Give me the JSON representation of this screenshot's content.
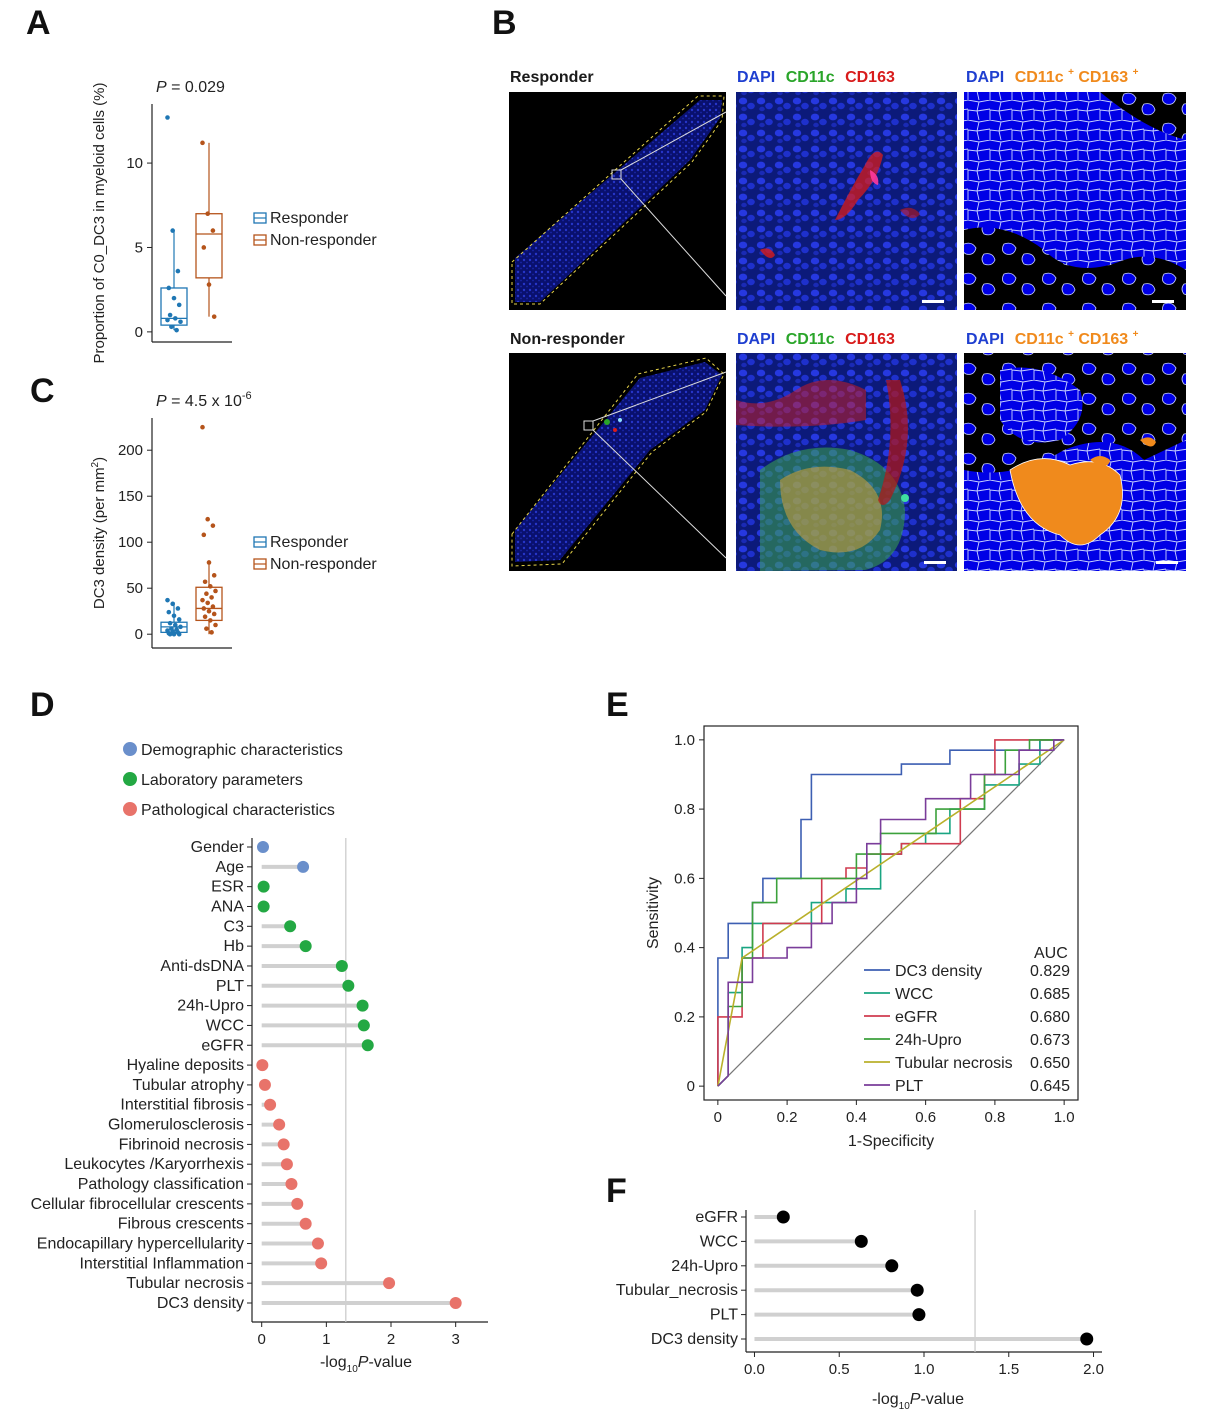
{
  "panels": {
    "A": "A",
    "B": "B",
    "C": "C",
    "D": "D",
    "E": "E",
    "F": "F"
  },
  "legend_groups": {
    "responder": "Responder",
    "non_responder": "Non-responder"
  },
  "colors": {
    "responder": "#1f77b4",
    "non_responder": "#b5541b",
    "demographic": "#6a8fcb",
    "laboratory": "#23a843",
    "pathological": "#e8736a",
    "lollipop_bar": "#d0d0d0",
    "threshold": "#c8c8c8",
    "dapi": "#1f3fd0",
    "cd11c": "#2aa52a",
    "cd163": "#d81b1b",
    "double_pos": "#f08a1c"
  },
  "chart_data": [
    {
      "panel": "A",
      "type": "box",
      "p_label": "P",
      "p_value": "= 0.029",
      "ylabel": "Proportion of C0_DC3 in myeloid cells (%)",
      "ylim": [
        -0.6,
        13.5
      ],
      "yticks": [
        "0",
        "5",
        "10"
      ],
      "ytick_values": [
        0,
        5,
        10
      ],
      "groups": [
        {
          "name": "Responder",
          "q1": 0.4,
          "median": 0.8,
          "q3": 2.6,
          "whisker_low": 0.1,
          "whisker_high": 6.0,
          "points": [
            12.7,
            6.0,
            3.6,
            2.6,
            2.0,
            1.6,
            1.0,
            0.8,
            0.6,
            0.3,
            0.1,
            0.7
          ]
        },
        {
          "name": "Non-responder",
          "q1": 3.2,
          "median": 5.8,
          "q3": 7.0,
          "whisker_low": 0.9,
          "whisker_high": 11.2,
          "points": [
            11.2,
            7.0,
            6.0,
            5.0,
            2.8,
            0.9
          ]
        }
      ]
    },
    {
      "panel": "C",
      "type": "box",
      "p_label": "P",
      "p_value": "= 4.5 x 10",
      "p_exp": "-6",
      "ylabel": "DC3 density (per mm",
      "ylabel_sup": "2",
      "ylabel_tail": ")",
      "ylim": [
        -15,
        235
      ],
      "yticks": [
        "0",
        "50",
        "100",
        "150",
        "200"
      ],
      "ytick_values": [
        0,
        50,
        100,
        150,
        200
      ],
      "groups": [
        {
          "name": "Responder",
          "q1": 2,
          "median": 8,
          "q3": 13,
          "whisker_low": 0,
          "whisker_high": 35,
          "points": [
            37,
            33,
            28,
            24,
            20,
            16,
            12,
            10,
            8,
            6,
            5,
            4,
            3,
            2,
            1,
            0,
            0,
            0
          ]
        },
        {
          "name": "Non-responder",
          "q1": 15,
          "median": 28,
          "q3": 51,
          "whisker_low": 0,
          "whisker_high": 78,
          "points": [
            225,
            125,
            118,
            108,
            78,
            64,
            57,
            52,
            47,
            44,
            40,
            37,
            34,
            30,
            28,
            25,
            22,
            19,
            15,
            10,
            6,
            2
          ]
        }
      ]
    },
    {
      "panel": "D",
      "type": "lollipop",
      "xlabel_pre": "-log",
      "xlabel_sub": "10",
      "xlabel_post": "P-value",
      "xlim": [
        -0.15,
        3.5
      ],
      "xticks": [
        "0",
        "1",
        "2",
        "3"
      ],
      "xtick_values": [
        0,
        1,
        2,
        3
      ],
      "threshold": 1.301,
      "legend": [
        {
          "label": "Demographic characteristics",
          "group": "demographic"
        },
        {
          "label": "Laboratory parameters",
          "group": "laboratory"
        },
        {
          "label": "Pathological characteristics",
          "group": "pathological"
        }
      ],
      "items": [
        {
          "label": "Gender",
          "value": 0.02,
          "group": "demographic"
        },
        {
          "label": "Age",
          "value": 0.64,
          "group": "demographic"
        },
        {
          "label": "ESR",
          "value": 0.03,
          "group": "laboratory"
        },
        {
          "label": "ANA",
          "value": 0.03,
          "group": "laboratory"
        },
        {
          "label": "C3",
          "value": 0.44,
          "group": "laboratory"
        },
        {
          "label": "Hb",
          "value": 0.68,
          "group": "laboratory"
        },
        {
          "label": "Anti-dsDNA",
          "value": 1.24,
          "group": "laboratory"
        },
        {
          "label": "PLT",
          "value": 1.34,
          "group": "laboratory"
        },
        {
          "label": "24h-Upro",
          "value": 1.56,
          "group": "laboratory"
        },
        {
          "label": "WCC",
          "value": 1.58,
          "group": "laboratory"
        },
        {
          "label": "eGFR",
          "value": 1.64,
          "group": "laboratory"
        },
        {
          "label": "Hyaline deposits",
          "value": 0.01,
          "group": "pathological"
        },
        {
          "label": "Tubular atrophy",
          "value": 0.05,
          "group": "pathological"
        },
        {
          "label": "Interstitial fibrosis",
          "value": 0.13,
          "group": "pathological"
        },
        {
          "label": "Glomerulosclerosis",
          "value": 0.27,
          "group": "pathological"
        },
        {
          "label": "Fibrinoid necrosis",
          "value": 0.34,
          "group": "pathological"
        },
        {
          "label": "Leukocytes /Karyorrhexis",
          "value": 0.39,
          "group": "pathological"
        },
        {
          "label": "Pathology classification",
          "value": 0.46,
          "group": "pathological"
        },
        {
          "label": "Cellular fibrocellular crescents",
          "value": 0.55,
          "group": "pathological"
        },
        {
          "label": "Fibrous crescents",
          "value": 0.68,
          "group": "pathological"
        },
        {
          "label": "Endocapillary hypercellularity",
          "value": 0.87,
          "group": "pathological"
        },
        {
          "label": "Interstitial Inflammation",
          "value": 0.92,
          "group": "pathological"
        },
        {
          "label": "Tubular necrosis",
          "value": 1.97,
          "group": "pathological"
        },
        {
          "label": "DC3 density",
          "value": 3.0,
          "group": "pathological"
        }
      ]
    },
    {
      "panel": "E",
      "type": "line",
      "xlabel": "1-Specificity",
      "ylabel": "Sensitivity",
      "xlim": [
        -0.04,
        1.04
      ],
      "ylim": [
        -0.04,
        1.04
      ],
      "xticks": [
        "0",
        "0.2",
        "0.4",
        "0.6",
        "0.8",
        "1.0"
      ],
      "yticks": [
        "0",
        "0.2",
        "0.4",
        "0.6",
        "0.8",
        "1.0"
      ],
      "tick_values": [
        0,
        0.2,
        0.4,
        0.6,
        0.8,
        1.0
      ],
      "auc_header": "AUC",
      "series": [
        {
          "name": "DC3 density",
          "auc": "0.829",
          "color": "#3d5fb2",
          "points": [
            [
              0,
              0
            ],
            [
              0,
              0.37
            ],
            [
              0.03,
              0.37
            ],
            [
              0.03,
              0.47
            ],
            [
              0.1,
              0.47
            ],
            [
              0.1,
              0.53
            ],
            [
              0.13,
              0.53
            ],
            [
              0.13,
              0.6
            ],
            [
              0.24,
              0.6
            ],
            [
              0.24,
              0.77
            ],
            [
              0.27,
              0.77
            ],
            [
              0.27,
              0.9
            ],
            [
              0.53,
              0.9
            ],
            [
              0.53,
              0.93
            ],
            [
              0.67,
              0.93
            ],
            [
              0.67,
              0.97
            ],
            [
              0.93,
              0.97
            ],
            [
              0.93,
              1.0
            ],
            [
              1.0,
              1.0
            ]
          ]
        },
        {
          "name": "WCC",
          "auc": "0.685",
          "color": "#1aa582",
          "points": [
            [
              0,
              0
            ],
            [
              0.03,
              0.03
            ],
            [
              0.03,
              0.27
            ],
            [
              0.07,
              0.27
            ],
            [
              0.07,
              0.4
            ],
            [
              0.1,
              0.4
            ],
            [
              0.1,
              0.47
            ],
            [
              0.27,
              0.47
            ],
            [
              0.27,
              0.53
            ],
            [
              0.37,
              0.53
            ],
            [
              0.37,
              0.57
            ],
            [
              0.47,
              0.57
            ],
            [
              0.47,
              0.67
            ],
            [
              0.53,
              0.67
            ],
            [
              0.53,
              0.7
            ],
            [
              0.6,
              0.7
            ],
            [
              0.6,
              0.73
            ],
            [
              0.67,
              0.73
            ],
            [
              0.67,
              0.8
            ],
            [
              0.77,
              0.8
            ],
            [
              0.77,
              0.87
            ],
            [
              0.87,
              0.87
            ],
            [
              0.87,
              0.93
            ],
            [
              0.93,
              0.93
            ],
            [
              0.93,
              1.0
            ],
            [
              1.0,
              1.0
            ]
          ]
        },
        {
          "name": "eGFR",
          "auc": "0.680",
          "color": "#d03b4f",
          "points": [
            [
              0,
              0
            ],
            [
              0,
              0.2
            ],
            [
              0.07,
              0.2
            ],
            [
              0.07,
              0.37
            ],
            [
              0.13,
              0.37
            ],
            [
              0.13,
              0.47
            ],
            [
              0.3,
              0.47
            ],
            [
              0.3,
              0.6
            ],
            [
              0.37,
              0.6
            ],
            [
              0.37,
              0.63
            ],
            [
              0.43,
              0.63
            ],
            [
              0.43,
              0.67
            ],
            [
              0.53,
              0.67
            ],
            [
              0.53,
              0.7
            ],
            [
              0.7,
              0.7
            ],
            [
              0.7,
              0.83
            ],
            [
              0.77,
              0.83
            ],
            [
              0.77,
              0.9
            ],
            [
              0.8,
              0.9
            ],
            [
              0.8,
              1.0
            ],
            [
              1.0,
              1.0
            ]
          ]
        },
        {
          "name": "24h-Upro",
          "auc": "0.673",
          "color": "#3ca13c",
          "points": [
            [
              0,
              0
            ],
            [
              0.03,
              0.03
            ],
            [
              0.03,
              0.23
            ],
            [
              0.07,
              0.23
            ],
            [
              0.07,
              0.37
            ],
            [
              0.1,
              0.37
            ],
            [
              0.1,
              0.53
            ],
            [
              0.17,
              0.53
            ],
            [
              0.17,
              0.6
            ],
            [
              0.4,
              0.6
            ],
            [
              0.4,
              0.67
            ],
            [
              0.47,
              0.67
            ],
            [
              0.47,
              0.73
            ],
            [
              0.63,
              0.73
            ],
            [
              0.63,
              0.8
            ],
            [
              0.77,
              0.8
            ],
            [
              0.77,
              0.9
            ],
            [
              0.83,
              0.9
            ],
            [
              0.83,
              0.97
            ],
            [
              0.9,
              0.97
            ],
            [
              0.9,
              1.0
            ],
            [
              1.0,
              1.0
            ]
          ]
        },
        {
          "name": "Tubular necrosis",
          "auc": "0.650",
          "color": "#b9b02b",
          "points": [
            [
              0,
              0
            ],
            [
              0.07,
              0.37
            ],
            [
              1.0,
              1.0
            ]
          ]
        },
        {
          "name": "PLT",
          "auc": "0.645",
          "color": "#7a3d9a",
          "points": [
            [
              0,
              0
            ],
            [
              0.03,
              0.03
            ],
            [
              0.03,
              0.3
            ],
            [
              0.1,
              0.3
            ],
            [
              0.1,
              0.37
            ],
            [
              0.2,
              0.37
            ],
            [
              0.2,
              0.4
            ],
            [
              0.27,
              0.4
            ],
            [
              0.27,
              0.47
            ],
            [
              0.33,
              0.47
            ],
            [
              0.33,
              0.53
            ],
            [
              0.4,
              0.53
            ],
            [
              0.4,
              0.6
            ],
            [
              0.43,
              0.6
            ],
            [
              0.43,
              0.7
            ],
            [
              0.47,
              0.7
            ],
            [
              0.47,
              0.77
            ],
            [
              0.6,
              0.77
            ],
            [
              0.6,
              0.83
            ],
            [
              0.73,
              0.83
            ],
            [
              0.73,
              0.9
            ],
            [
              0.87,
              0.9
            ],
            [
              0.87,
              0.97
            ],
            [
              0.97,
              0.97
            ],
            [
              0.97,
              1.0
            ],
            [
              1.0,
              1.0
            ]
          ]
        }
      ]
    },
    {
      "panel": "F",
      "type": "lollipop",
      "xlabel_pre": "-log",
      "xlabel_sub": "10",
      "xlabel_post": "P-value",
      "xlim": [
        -0.05,
        2.05
      ],
      "xticks": [
        "0.0",
        "0.5",
        "1.0",
        "1.5",
        "2.0"
      ],
      "xtick_values": [
        0,
        0.5,
        1.0,
        1.5,
        2.0
      ],
      "threshold": 1.301,
      "items": [
        {
          "label": "eGFR",
          "value": 0.17
        },
        {
          "label": "WCC",
          "value": 0.63
        },
        {
          "label": "24h-Upro",
          "value": 0.81
        },
        {
          "label": "Tubular_necrosis",
          "value": 0.96
        },
        {
          "label": "PLT",
          "value": 0.97
        },
        {
          "label": "DC3 density",
          "value": 1.96
        }
      ]
    }
  ],
  "panel_b": {
    "rows": [
      {
        "title": "Responder",
        "col2": {
          "dapi": "DAPI",
          "cd11c": "CD11c",
          "cd163": "CD163"
        },
        "col3": {
          "dapi": "DAPI",
          "label": "CD11c",
          "sup1": "+",
          "label2": "CD163",
          "sup2": "+"
        }
      },
      {
        "title": "Non-responder",
        "col2": {
          "dapi": "DAPI",
          "cd11c": "CD11c",
          "cd163": "CD163"
        },
        "col3": {
          "dapi": "DAPI",
          "label": "CD11c",
          "sup1": "+",
          "label2": "CD163",
          "sup2": "+"
        }
      }
    ]
  }
}
